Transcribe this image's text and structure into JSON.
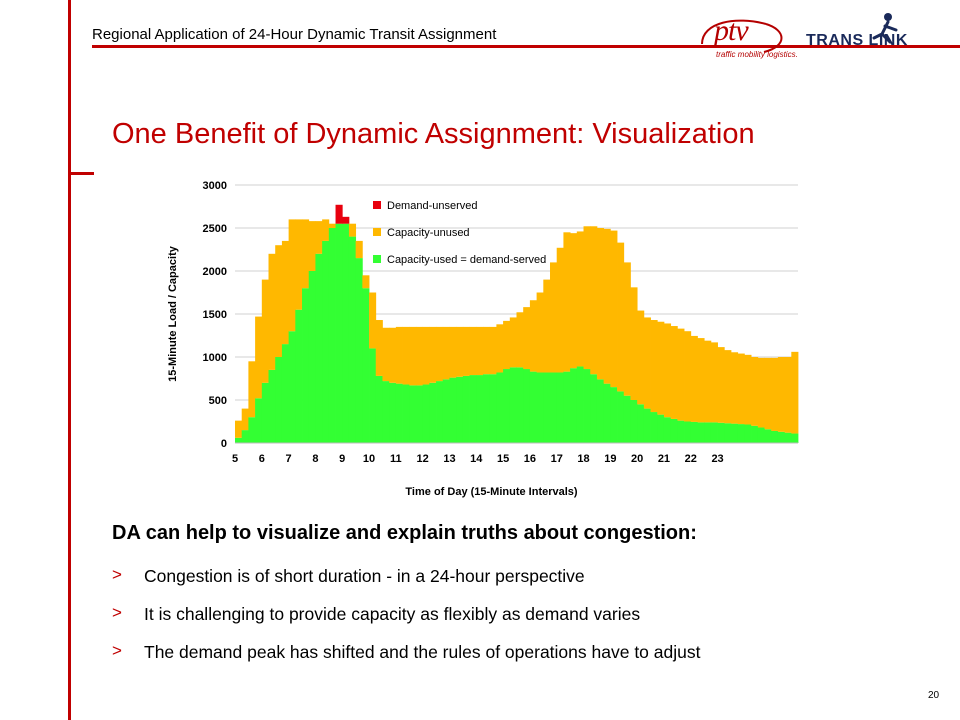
{
  "header": {
    "text": "Regional Application of 24-Hour Dynamic Transit Assignment"
  },
  "logos": {
    "ptv_word": "ptv",
    "ptv_tagline": "traffic mobility logistics.",
    "translink_word": "TRANS  LINK"
  },
  "title": "One Benefit of Dynamic Assignment: Visualization",
  "headline": "DA can help to visualize and explain truths about congestion:",
  "bullets": [
    {
      "marker": ">",
      "text": "Congestion is of short duration - in a 24-hour perspective"
    },
    {
      "marker": ">",
      "text": "It is challenging to provide capacity as flexibly as demand varies"
    },
    {
      "marker": ">",
      "text": "The demand peak has shifted and the rules of operations have to adjust"
    }
  ],
  "page_number": "20",
  "colors": {
    "accent": "#c00000",
    "capacity_used": "#33ff33",
    "capacity_unused": "#ffb800",
    "demand_unserved": "#e8000e"
  },
  "chart_data": {
    "type": "bar",
    "stacked": true,
    "xlabel": "Time of Day (15-Minute Intervals)",
    "ylabel": "15-Minute Load / Capacity",
    "ylim": [
      0,
      3000
    ],
    "yticks": [
      0,
      500,
      1000,
      1500,
      2000,
      2500,
      3000
    ],
    "x_tick_labels": [
      "5",
      "6",
      "7",
      "8",
      "9",
      "10",
      "11",
      "12",
      "13",
      "14",
      "15",
      "16",
      "17",
      "18",
      "19",
      "20",
      "21",
      "22",
      "23"
    ],
    "x_start_hour": 5,
    "intervals_per_hour": 4,
    "grid": true,
    "legend_position": "top-center",
    "series": [
      {
        "name": "Capacity-used = demand-served",
        "color": "#33ff33",
        "values": [
          60,
          150,
          300,
          520,
          700,
          850,
          1000,
          1150,
          1300,
          1550,
          1800,
          2000,
          2200,
          2350,
          2500,
          2550,
          2550,
          2400,
          2150,
          1800,
          1100,
          780,
          720,
          700,
          690,
          680,
          670,
          670,
          680,
          700,
          720,
          740,
          760,
          770,
          780,
          790,
          790,
          800,
          800,
          820,
          860,
          880,
          880,
          860,
          830,
          820,
          820,
          820,
          820,
          830,
          870,
          890,
          860,
          800,
          740,
          690,
          650,
          600,
          550,
          500,
          450,
          400,
          360,
          330,
          300,
          280,
          260,
          250,
          245,
          240,
          240,
          240,
          235,
          230,
          225,
          220,
          215,
          200,
          180,
          160,
          140,
          130,
          120,
          110
        ]
      },
      {
        "name": "Capacity-unused",
        "color": "#ffb800",
        "values": [
          200,
          250,
          650,
          950,
          1200,
          1350,
          1300,
          1200,
          1300,
          1050,
          800,
          580,
          380,
          250,
          50,
          0,
          0,
          150,
          200,
          150,
          650,
          650,
          620,
          640,
          660,
          670,
          680,
          680,
          670,
          650,
          630,
          610,
          590,
          580,
          570,
          560,
          560,
          550,
          550,
          560,
          560,
          580,
          640,
          720,
          830,
          930,
          1080,
          1280,
          1450,
          1620,
          1570,
          1570,
          1660,
          1720,
          1760,
          1800,
          1820,
          1730,
          1550,
          1310,
          1090,
          1060,
          1070,
          1080,
          1090,
          1080,
          1070,
          1050,
          1000,
          980,
          950,
          930,
          880,
          850,
          830,
          820,
          810,
          800,
          810,
          830,
          850,
          870,
          880,
          950
        ]
      },
      {
        "name": "Demand-unserved",
        "color": "#e8000e",
        "values": [
          0,
          0,
          0,
          0,
          0,
          0,
          0,
          0,
          0,
          0,
          0,
          0,
          0,
          0,
          0,
          220,
          80,
          0,
          0,
          0,
          0,
          0,
          0,
          0,
          0,
          0,
          0,
          0,
          0,
          0,
          0,
          0,
          0,
          0,
          0,
          0,
          0,
          0,
          0,
          0,
          0,
          0,
          0,
          0,
          0,
          0,
          0,
          0,
          0,
          0,
          0,
          0,
          0,
          0,
          0,
          0,
          0,
          0,
          0,
          0,
          0,
          0,
          0,
          0,
          0,
          0,
          0,
          0,
          0,
          0,
          0,
          0,
          0,
          0,
          0,
          0,
          0,
          0,
          0,
          0,
          0,
          0,
          0,
          0
        ]
      }
    ]
  }
}
